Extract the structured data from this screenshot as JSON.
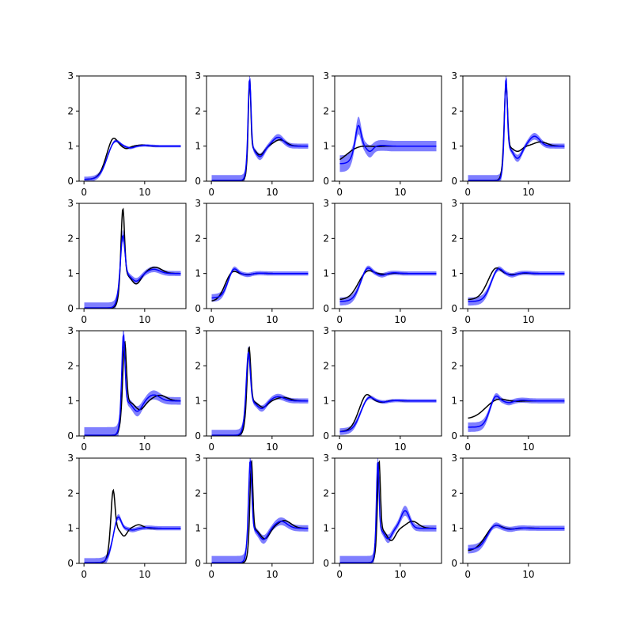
{
  "figure": {
    "rows": 4,
    "cols": 4,
    "colors": {
      "reference": "#000000",
      "prediction": "#0000ff",
      "band": "#0000ff",
      "axes": "#000000"
    }
  },
  "chart_data": [
    {
      "type": "line",
      "xlim": [
        -0.8,
        16.8
      ],
      "ylim": [
        0,
        3
      ],
      "xticks": [
        0,
        10
      ],
      "yticks": [
        0,
        1,
        2,
        3
      ],
      "reference": {
        "shape": "curve",
        "s0": 0.05,
        "peak": {
          "x": 4.8,
          "y": 1.28,
          "w": 1.2
        },
        "min": {
          "x": 7.0,
          "y": 0.93,
          "w": 1.1
        },
        "second": {
          "x": 9.5,
          "y": 1.03,
          "w": 1.5
        }
      },
      "prediction": {
        "shape": "curve",
        "s0": 0.05,
        "peak": {
          "x": 5.1,
          "y": 1.2,
          "w": 1.3
        },
        "min": {
          "x": 7.6,
          "y": 0.95,
          "w": 1.2
        },
        "second": {
          "x": 10.0,
          "y": 1.02,
          "w": 1.5
        },
        "band": 0.06
      }
    },
    {
      "type": "line",
      "xlim": [
        -0.8,
        16.8
      ],
      "ylim": [
        0,
        3
      ],
      "xticks": [
        0,
        10
      ],
      "yticks": [
        0,
        1,
        2,
        3
      ],
      "reference": {
        "shape": "curve",
        "s0": 0.02,
        "peak": {
          "x": 6.3,
          "y": 3.0,
          "w": 0.35
        },
        "min": {
          "x": 8.0,
          "y": 0.75,
          "w": 1.4
        },
        "second": {
          "x": 11.3,
          "y": 1.18,
          "w": 1.8
        }
      },
      "prediction": {
        "shape": "curve",
        "s0": 0.02,
        "peak": {
          "x": 6.3,
          "y": 3.0,
          "w": 0.4
        },
        "min": {
          "x": 8.0,
          "y": 0.7,
          "w": 1.4
        },
        "second": {
          "x": 11.0,
          "y": 1.25,
          "w": 1.6
        },
        "band": 0.12
      }
    },
    {
      "type": "line",
      "xlim": [
        -0.8,
        16.8
      ],
      "ylim": [
        0,
        3
      ],
      "xticks": [
        0,
        10
      ],
      "yticks": [
        0,
        1,
        2,
        3
      ],
      "reference": {
        "shape": "curve",
        "s0": 0.5,
        "peak": {
          "x": 3.5,
          "y": 1.02,
          "w": 2.0
        },
        "min": {
          "x": 6.0,
          "y": 0.99,
          "w": 2.0
        },
        "second": {
          "x": 8.0,
          "y": 1.0,
          "w": 2.0
        }
      },
      "prediction": {
        "shape": "curve",
        "s0": 0.5,
        "peak": {
          "x": 3.1,
          "y": 1.62,
          "w": 0.8
        },
        "min": {
          "x": 5.0,
          "y": 0.85,
          "w": 1.0
        },
        "second": {
          "x": 7.0,
          "y": 1.02,
          "w": 1.5
        },
        "band": 0.25
      }
    },
    {
      "type": "line",
      "xlim": [
        -0.8,
        16.8
      ],
      "ylim": [
        0,
        3
      ],
      "xticks": [
        0,
        10
      ],
      "yticks": [
        0,
        1,
        2,
        3
      ],
      "reference": {
        "shape": "curve",
        "s0": 0.02,
        "peak": {
          "x": 6.3,
          "y": 2.85,
          "w": 0.45
        },
        "min": {
          "x": 8.2,
          "y": 0.85,
          "w": 1.4
        },
        "second": {
          "x": 12.0,
          "y": 1.12,
          "w": 2.0
        }
      },
      "prediction": {
        "shape": "curve",
        "s0": 0.02,
        "peak": {
          "x": 6.3,
          "y": 3.0,
          "w": 0.4
        },
        "min": {
          "x": 8.2,
          "y": 0.65,
          "w": 1.4
        },
        "second": {
          "x": 11.0,
          "y": 1.28,
          "w": 1.6
        },
        "band": 0.12
      }
    },
    {
      "type": "line",
      "xlim": [
        -0.8,
        16.8
      ],
      "ylim": [
        0,
        3
      ],
      "xticks": [
        0,
        10
      ],
      "yticks": [
        0,
        1,
        2,
        3
      ],
      "reference": {
        "shape": "curve",
        "s0": 0.02,
        "peak": {
          "x": 6.4,
          "y": 2.92,
          "w": 0.5
        },
        "min": {
          "x": 8.6,
          "y": 0.7,
          "w": 1.5
        },
        "second": {
          "x": 11.7,
          "y": 1.18,
          "w": 2.0
        }
      },
      "prediction": {
        "shape": "curve",
        "s0": 0.02,
        "peak": {
          "x": 6.4,
          "y": 2.15,
          "w": 0.6
        },
        "min": {
          "x": 8.6,
          "y": 0.78,
          "w": 1.5
        },
        "second": {
          "x": 11.5,
          "y": 1.12,
          "w": 1.8
        },
        "band": 0.12
      }
    },
    {
      "type": "line",
      "xlim": [
        -0.8,
        16.8
      ],
      "ylim": [
        0,
        3
      ],
      "xticks": [
        0,
        10
      ],
      "yticks": [
        0,
        1,
        2,
        3
      ],
      "reference": {
        "shape": "curve",
        "s0": 0.2,
        "peak": {
          "x": 3.5,
          "y": 1.1,
          "w": 1.2
        },
        "min": {
          "x": 6.0,
          "y": 0.97,
          "w": 1.5
        },
        "second": {
          "x": 8.0,
          "y": 1.01,
          "w": 1.5
        }
      },
      "prediction": {
        "shape": "curve",
        "s0": 0.3,
        "peak": {
          "x": 3.7,
          "y": 1.17,
          "w": 1.0
        },
        "min": {
          "x": 6.0,
          "y": 0.96,
          "w": 1.2
        },
        "second": {
          "x": 8.0,
          "y": 1.01,
          "w": 1.5
        },
        "band": 0.1
      }
    },
    {
      "type": "line",
      "xlim": [
        -0.8,
        16.8
      ],
      "ylim": [
        0,
        3
      ],
      "xticks": [
        0,
        10
      ],
      "yticks": [
        0,
        1,
        2,
        3
      ],
      "reference": {
        "shape": "curve",
        "s0": 0.25,
        "peak": {
          "x": 4.6,
          "y": 1.12,
          "w": 1.5
        },
        "min": {
          "x": 7.5,
          "y": 0.98,
          "w": 1.5
        },
        "second": {
          "x": 9.0,
          "y": 1.01,
          "w": 1.5
        }
      },
      "prediction": {
        "shape": "curve",
        "s0": 0.2,
        "peak": {
          "x": 4.6,
          "y": 1.2,
          "w": 1.2
        },
        "min": {
          "x": 7.0,
          "y": 0.95,
          "w": 1.2
        },
        "second": {
          "x": 9.0,
          "y": 1.02,
          "w": 1.5
        },
        "band": 0.1
      }
    },
    {
      "type": "line",
      "xlim": [
        -0.8,
        16.8
      ],
      "ylim": [
        0,
        3
      ],
      "xticks": [
        0,
        10
      ],
      "yticks": [
        0,
        1,
        2,
        3
      ],
      "reference": {
        "shape": "curve",
        "s0": 0.25,
        "peak": {
          "x": 4.6,
          "y": 1.2,
          "w": 1.4
        },
        "min": {
          "x": 7.3,
          "y": 0.97,
          "w": 1.5
        },
        "second": {
          "x": 9.5,
          "y": 1.01,
          "w": 1.5
        }
      },
      "prediction": {
        "shape": "curve",
        "s0": 0.2,
        "peak": {
          "x": 5.0,
          "y": 1.18,
          "w": 1.2
        },
        "min": {
          "x": 7.3,
          "y": 0.95,
          "w": 1.2
        },
        "second": {
          "x": 9.5,
          "y": 1.02,
          "w": 1.5
        },
        "band": 0.1
      }
    },
    {
      "type": "line",
      "xlim": [
        -0.8,
        16.8
      ],
      "ylim": [
        0,
        3
      ],
      "xticks": [
        0,
        10
      ],
      "yticks": [
        0,
        1,
        2,
        3
      ],
      "reference": {
        "shape": "curve",
        "s0": 0.02,
        "peak": {
          "x": 6.7,
          "y": 2.75,
          "w": 0.5
        },
        "min": {
          "x": 9.2,
          "y": 0.75,
          "w": 1.6
        },
        "second": {
          "x": 12.5,
          "y": 1.16,
          "w": 2.0
        }
      },
      "prediction": {
        "shape": "curve",
        "s0": 0.02,
        "peak": {
          "x": 6.5,
          "y": 2.95,
          "w": 0.45
        },
        "min": {
          "x": 8.8,
          "y": 0.7,
          "w": 1.5
        },
        "second": {
          "x": 11.5,
          "y": 1.17,
          "w": 1.8
        },
        "band": 0.18
      }
    },
    {
      "type": "line",
      "xlim": [
        -0.8,
        16.8
      ],
      "ylim": [
        0,
        3
      ],
      "xticks": [
        0,
        10
      ],
      "yticks": [
        0,
        1,
        2,
        3
      ],
      "reference": {
        "shape": "curve",
        "s0": 0.02,
        "peak": {
          "x": 6.2,
          "y": 2.6,
          "w": 0.5
        },
        "min": {
          "x": 8.5,
          "y": 0.82,
          "w": 1.5
        },
        "second": {
          "x": 11.8,
          "y": 1.1,
          "w": 2.0
        }
      },
      "prediction": {
        "shape": "curve",
        "s0": 0.02,
        "peak": {
          "x": 6.1,
          "y": 2.45,
          "w": 0.55
        },
        "min": {
          "x": 8.3,
          "y": 0.78,
          "w": 1.5
        },
        "second": {
          "x": 11.0,
          "y": 1.12,
          "w": 1.8
        },
        "band": 0.12
      }
    },
    {
      "type": "line",
      "xlim": [
        -0.8,
        16.8
      ],
      "ylim": [
        0,
        3
      ],
      "xticks": [
        0,
        10
      ],
      "yticks": [
        0,
        1,
        2,
        3
      ],
      "reference": {
        "shape": "curve",
        "s0": 0.12,
        "peak": {
          "x": 4.4,
          "y": 1.23,
          "w": 1.3
        },
        "min": {
          "x": 7.0,
          "y": 0.96,
          "w": 1.3
        },
        "second": {
          "x": 9.0,
          "y": 1.01,
          "w": 1.5
        }
      },
      "prediction": {
        "shape": "curve",
        "s0": 0.12,
        "peak": {
          "x": 4.8,
          "y": 1.15,
          "w": 1.3
        },
        "min": {
          "x": 7.3,
          "y": 0.97,
          "w": 1.3
        },
        "second": {
          "x": 9.5,
          "y": 1.01,
          "w": 1.5
        },
        "band": 0.08
      }
    },
    {
      "type": "line",
      "xlim": [
        -0.8,
        16.8
      ],
      "ylim": [
        0,
        3
      ],
      "xticks": [
        0,
        10
      ],
      "yticks": [
        0,
        1,
        2,
        3
      ],
      "reference": {
        "shape": "curve",
        "s0": 0.48,
        "peak": {
          "x": 5.0,
          "y": 1.08,
          "w": 2.0
        },
        "min": {
          "x": 8.0,
          "y": 0.99,
          "w": 2.0
        },
        "second": {
          "x": 10.0,
          "y": 1.0,
          "w": 2.0
        }
      },
      "prediction": {
        "shape": "curve",
        "s0": 0.25,
        "peak": {
          "x": 4.6,
          "y": 1.18,
          "w": 1.0
        },
        "min": {
          "x": 6.8,
          "y": 0.95,
          "w": 1.2
        },
        "second": {
          "x": 9.0,
          "y": 1.02,
          "w": 1.5
        },
        "band": 0.12
      }
    },
    {
      "type": "line",
      "xlim": [
        -0.8,
        16.8
      ],
      "ylim": [
        0,
        3
      ],
      "xticks": [
        0,
        10
      ],
      "yticks": [
        0,
        1,
        2,
        3
      ],
      "reference": {
        "shape": "curve",
        "s0": 0.02,
        "peak": {
          "x": 4.8,
          "y": 2.15,
          "w": 0.55
        },
        "min": {
          "x": 6.6,
          "y": 0.78,
          "w": 1.0
        },
        "second": {
          "x": 9.0,
          "y": 1.1,
          "w": 1.3
        }
      },
      "prediction": {
        "shape": "curve",
        "s0": 0.02,
        "peak": {
          "x": 5.6,
          "y": 1.38,
          "w": 0.9
        },
        "min": {
          "x": 8.0,
          "y": 0.95,
          "w": 1.3
        },
        "second": {
          "x": 10.5,
          "y": 1.02,
          "w": 1.5
        },
        "band": 0.1
      }
    },
    {
      "type": "line",
      "xlim": [
        -0.8,
        16.8
      ],
      "ylim": [
        0,
        3
      ],
      "xticks": [
        0,
        10
      ],
      "yticks": [
        0,
        1,
        2,
        3
      ],
      "reference": {
        "shape": "curve",
        "s0": 0.02,
        "peak": {
          "x": 6.6,
          "y": 3.0,
          "w": 0.4
        },
        "min": {
          "x": 8.8,
          "y": 0.7,
          "w": 1.5
        },
        "second": {
          "x": 12.0,
          "y": 1.22,
          "w": 2.0
        }
      },
      "prediction": {
        "shape": "curve",
        "s0": 0.02,
        "peak": {
          "x": 6.4,
          "y": 3.0,
          "w": 0.45
        },
        "min": {
          "x": 8.6,
          "y": 0.68,
          "w": 1.5
        },
        "second": {
          "x": 11.5,
          "y": 1.2,
          "w": 1.8
        },
        "band": 0.15
      }
    },
    {
      "type": "line",
      "xlim": [
        -0.8,
        16.8
      ],
      "ylim": [
        0,
        3
      ],
      "xticks": [
        0,
        10
      ],
      "yticks": [
        0,
        1,
        2,
        3
      ],
      "reference": {
        "shape": "curve",
        "s0": 0.02,
        "peak": {
          "x": 6.5,
          "y": 3.0,
          "w": 0.4
        },
        "min": {
          "x": 8.5,
          "y": 0.65,
          "w": 1.4
        },
        "second": {
          "x": 12.0,
          "y": 1.2,
          "w": 1.8
        }
      },
      "prediction": {
        "shape": "curve",
        "s0": 0.02,
        "peak": {
          "x": 6.3,
          "y": 3.0,
          "w": 0.35
        },
        "min": {
          "x": 8.0,
          "y": 0.7,
          "w": 1.2
        },
        "second": {
          "x": 10.8,
          "y": 1.5,
          "w": 1.3
        },
        "band": 0.15
      }
    },
    {
      "type": "line",
      "xlim": [
        -0.8,
        16.8
      ],
      "ylim": [
        0,
        3
      ],
      "xticks": [
        0,
        10
      ],
      "yticks": [
        0,
        1,
        2,
        3
      ],
      "reference": {
        "shape": "curve",
        "s0": 0.35,
        "peak": {
          "x": 4.5,
          "y": 1.12,
          "w": 1.6
        },
        "min": {
          "x": 7.3,
          "y": 0.98,
          "w": 1.6
        },
        "second": {
          "x": 9.5,
          "y": 1.01,
          "w": 1.6
        }
      },
      "prediction": {
        "shape": "curve",
        "s0": 0.4,
        "peak": {
          "x": 4.5,
          "y": 1.12,
          "w": 1.3
        },
        "min": {
          "x": 7.0,
          "y": 0.97,
          "w": 1.3
        },
        "second": {
          "x": 9.0,
          "y": 1.01,
          "w": 1.5
        },
        "band": 0.12
      }
    }
  ]
}
